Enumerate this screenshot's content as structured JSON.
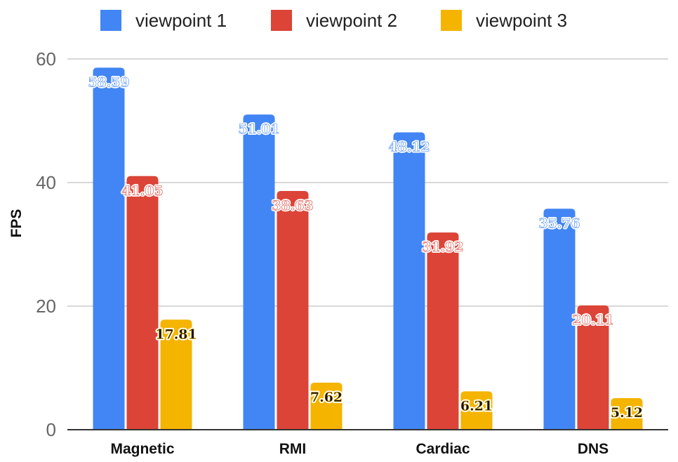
{
  "chart_data": {
    "type": "bar",
    "title": "",
    "xlabel": "",
    "ylabel": "FPS",
    "ylim": [
      0,
      60
    ],
    "yticks": [
      0,
      20,
      40,
      60
    ],
    "grid": true,
    "legend_position": "top",
    "categories": [
      "Magnetic",
      "RMI",
      "Cardiac",
      "DNS"
    ],
    "series": [
      {
        "name": "viewpoint 1",
        "color": "#4285F4",
        "label_color": "#ffffff",
        "values": [
          58.59,
          51.01,
          48.12,
          35.76
        ],
        "labels": [
          "58.59",
          "51.01",
          "48.12",
          "35.76"
        ]
      },
      {
        "name": "viewpoint 2",
        "color": "#DB4437",
        "label_color": "#ffffff",
        "values": [
          41.05,
          38.63,
          31.92,
          20.11
        ],
        "labels": [
          "41.05",
          "38.63",
          "31.92",
          "20.11"
        ]
      },
      {
        "name": "viewpoint 3",
        "color": "#F4B400",
        "label_color": "#111111",
        "values": [
          17.81,
          7.62,
          6.21,
          5.12
        ],
        "labels": [
          "17.81",
          "7.62",
          "6.21",
          "5.12"
        ]
      }
    ]
  }
}
